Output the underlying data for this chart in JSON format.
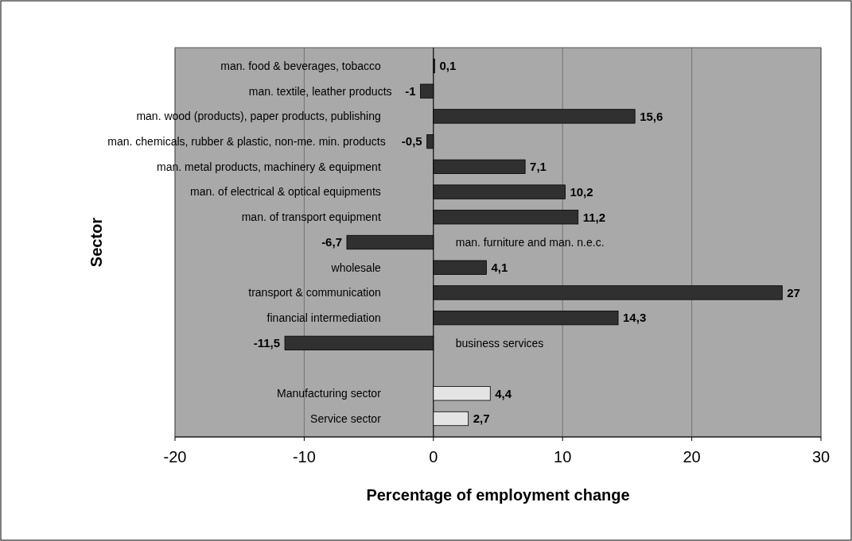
{
  "chart_data": {
    "type": "bar",
    "orientation": "horizontal",
    "xlabel": "Percentage of employment change",
    "ylabel": "Sector",
    "categories": [
      "man. food & beverages, tobacco",
      "man. textile, leather products",
      "man. wood (products), paper products, publishing",
      "man. chemicals, rubber & plastic, non-me. min. products",
      "man. metal products, machinery & equipment",
      "man. of electrical & optical equipments",
      "man. of transport equipment",
      "man. furniture and man. n.e.c.",
      "wholesale",
      "transport & communication",
      "financial intermediation",
      "business services",
      null,
      "Manufacturing sector",
      "Service sector"
    ],
    "values": [
      0.1,
      -1,
      15.6,
      -0.5,
      7.1,
      10.2,
      11.2,
      -6.7,
      4.1,
      27,
      14.3,
      -11.5,
      null,
      4.4,
      2.7
    ],
    "value_labels": [
      "0,1",
      "-1",
      "15,6",
      "-0,5",
      "7,1",
      "10,2",
      "11,2",
      "-6,7",
      "4,1",
      "27",
      "14,3",
      "-11,5",
      null,
      "4,4",
      "2,7"
    ],
    "colors": [
      "#303030",
      "#303030",
      "#303030",
      "#303030",
      "#303030",
      "#303030",
      "#303030",
      "#303030",
      "#303030",
      "#303030",
      "#303030",
      "#303030",
      null,
      "#e4e4e4",
      "#e4e4e4"
    ],
    "xlim": [
      -20,
      30
    ],
    "xticks": [
      -20,
      -10,
      0,
      10,
      20,
      30
    ],
    "grid": "x"
  }
}
